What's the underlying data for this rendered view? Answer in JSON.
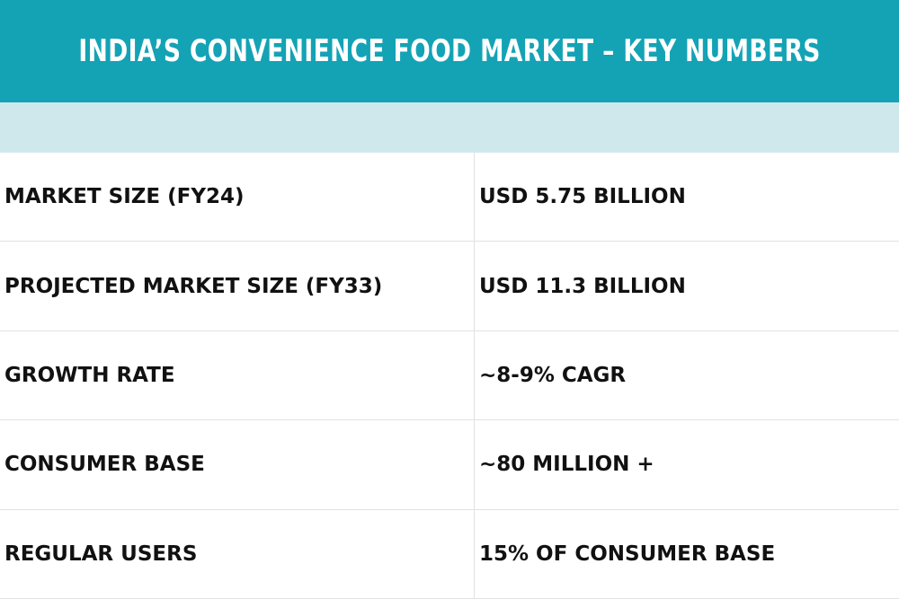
{
  "header": {
    "title": "INDIA’S CONVENIENCE FOOD MARKET – KEY NUMBERS",
    "bg_color": "#13a3b5",
    "band_color": "#cfe8ec"
  },
  "table": {
    "rows": [
      {
        "label": "MARKET SIZE (FY24)",
        "value": "USD 5.75 BILLION"
      },
      {
        "label": "PROJECTED MARKET SIZE (FY33)",
        "value": "USD 11.3 BILLION"
      },
      {
        "label": "GROWTH RATE",
        "value": "~8-9% CAGR"
      },
      {
        "label": "CONSUMER BASE",
        "value": "~80 MILLION +"
      },
      {
        "label": "REGULAR USERS",
        "value": "15% OF CONSUMER BASE"
      }
    ]
  }
}
